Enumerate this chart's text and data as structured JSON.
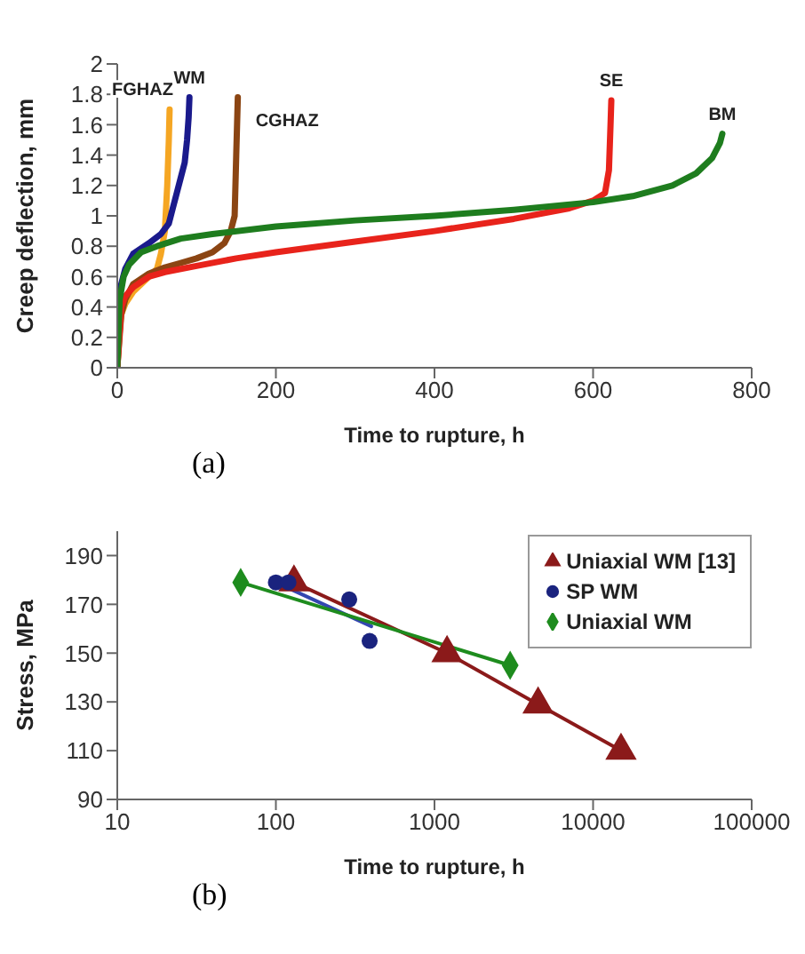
{
  "chart_data": [
    {
      "type": "line",
      "title": "(a)",
      "xlabel": "Time to rupture, h",
      "ylabel": "Creep deflection, mm",
      "xlim": [
        0,
        800
      ],
      "xticks": [
        0,
        200,
        400,
        600,
        800
      ],
      "ylim": [
        0,
        2
      ],
      "yticks": [
        0,
        0.2,
        0.4,
        0.6,
        0.8,
        1,
        1.2,
        1.4,
        1.6,
        1.8,
        2
      ],
      "grid": false,
      "legend": false,
      "marker": "none",
      "series": [
        {
          "name": "FGHAZ",
          "color": "#f5a623",
          "x": [
            0,
            2,
            5,
            10,
            20,
            30,
            40,
            50,
            55,
            60,
            63,
            65,
            66
          ],
          "values": [
            0,
            0.2,
            0.35,
            0.42,
            0.5,
            0.55,
            0.6,
            0.65,
            0.75,
            0.9,
            1.2,
            1.5,
            1.7
          ]
        },
        {
          "name": "WM",
          "color": "#1a1a8c",
          "x": [
            0,
            2,
            5,
            10,
            20,
            40,
            55,
            65,
            70,
            75,
            80,
            85,
            88,
            90,
            91
          ],
          "values": [
            0,
            0.4,
            0.55,
            0.65,
            0.75,
            0.82,
            0.88,
            0.95,
            1.05,
            1.15,
            1.25,
            1.35,
            1.5,
            1.65,
            1.78
          ]
        },
        {
          "name": "CGHAZ",
          "color": "#8b4513",
          "x": [
            0,
            5,
            10,
            20,
            40,
            60,
            80,
            100,
            120,
            135,
            143,
            148,
            150,
            152
          ],
          "values": [
            0,
            0.35,
            0.45,
            0.55,
            0.62,
            0.66,
            0.69,
            0.72,
            0.76,
            0.82,
            0.9,
            1.0,
            1.4,
            1.78
          ]
        },
        {
          "name": "SE",
          "color": "#e8231b",
          "x": [
            0,
            5,
            10,
            20,
            40,
            60,
            100,
            150,
            200,
            300,
            400,
            500,
            570,
            600,
            615,
            620,
            622,
            623
          ],
          "values": [
            0,
            0.4,
            0.47,
            0.53,
            0.6,
            0.63,
            0.67,
            0.72,
            0.76,
            0.83,
            0.9,
            0.98,
            1.05,
            1.1,
            1.15,
            1.3,
            1.6,
            1.76
          ]
        },
        {
          "name": "BM",
          "color": "#1e7d1e",
          "x": [
            0,
            3,
            8,
            15,
            30,
            50,
            80,
            120,
            200,
            300,
            400,
            500,
            600,
            650,
            700,
            730,
            750,
            760,
            763
          ],
          "values": [
            0,
            0.45,
            0.6,
            0.68,
            0.76,
            0.8,
            0.85,
            0.88,
            0.93,
            0.97,
            1.0,
            1.04,
            1.09,
            1.13,
            1.2,
            1.28,
            1.38,
            1.48,
            1.54
          ]
        }
      ]
    },
    {
      "type": "line",
      "title": "(b)",
      "xlabel": "Time to rupture, h",
      "ylabel": "Stress, MPa",
      "log": "x",
      "xlim": [
        10,
        100000
      ],
      "xticks": [
        10,
        100,
        1000,
        10000,
        100000
      ],
      "ylim": [
        90,
        200
      ],
      "yticks": [
        90,
        110,
        130,
        150,
        170,
        190
      ],
      "grid": false,
      "legend": "top right",
      "series": [
        {
          "name": "Uniaxial WM [13]",
          "type": "line",
          "marker": "triangle",
          "color": "#8b1a1a",
          "x": [
            130,
            1200,
            4500,
            15000
          ],
          "values": [
            179,
            150,
            129,
            110
          ]
        },
        {
          "name": "SP WM",
          "type": "scatter",
          "marker": "circle",
          "color": "#1a237e",
          "x": [
            100,
            120,
            290,
            390
          ],
          "values": [
            179,
            179,
            172,
            155
          ]
        },
        {
          "type": "line",
          "marker": "none",
          "color": "#3346b0",
          "x": [
            100,
            400
          ],
          "values": [
            179,
            161
          ]
        },
        {
          "name": "Uniaxial WM",
          "type": "line",
          "marker": "diamond",
          "color": "#1e8c1e",
          "x": [
            60,
            3000
          ],
          "values": [
            179,
            145
          ]
        }
      ]
    }
  ]
}
